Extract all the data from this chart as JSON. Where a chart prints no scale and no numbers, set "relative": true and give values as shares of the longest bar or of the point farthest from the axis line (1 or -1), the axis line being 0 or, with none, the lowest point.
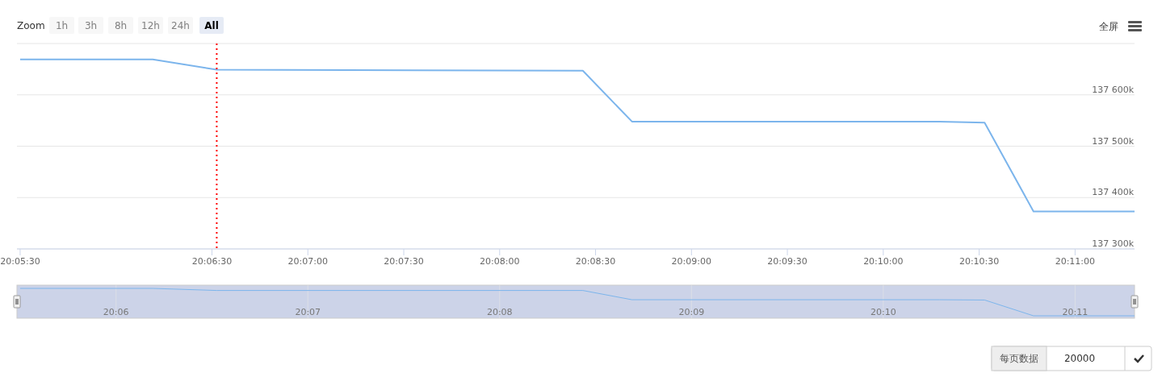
{
  "chart_data": [
    {
      "type": "line",
      "annotations": [
        "Zoom",
        "1h",
        "3h",
        "8h",
        "12h",
        "24h",
        "All",
        "全屏",
        "每页数据",
        "20000"
      ],
      "x": [
        20.091667,
        20.10319,
        20.10875,
        20.14056,
        20.14483,
        20.17156,
        20.17547,
        20.17972,
        20.1885
      ],
      "series": [
        {
          "color": "#7cb5ec",
          "values": [
            137669,
            137669,
            137649,
            137647,
            137548,
            137548,
            137546,
            137373,
            137373
          ]
        }
      ],
      "xlim": [
        20.09139,
        20.1885
      ],
      "ylim": [
        137300,
        137700
      ],
      "xticks": [
        {
          "value": 20.091667,
          "label": "20:05:30"
        },
        {
          "value": 20.108333,
          "label": "20:06:30"
        },
        {
          "value": 20.116667,
          "label": "20:07:00"
        },
        {
          "value": 20.125,
          "label": "20:07:30"
        },
        {
          "value": 20.133333,
          "label": "20:08:00"
        },
        {
          "value": 20.141667,
          "label": "20:08:30"
        },
        {
          "value": 20.15,
          "label": "20:09:00"
        },
        {
          "value": 20.158333,
          "label": "20:09:30"
        },
        {
          "value": 20.166667,
          "label": "20:10:00"
        },
        {
          "value": 20.175,
          "label": "20:10:30"
        },
        {
          "value": 20.183333,
          "label": "20:11:00"
        }
      ],
      "yticks": [
        {
          "value": 137300,
          "label": "137 300k"
        },
        {
          "value": 137400,
          "label": "137 400k"
        },
        {
          "value": 137500,
          "label": "137 500k"
        },
        {
          "value": 137600,
          "label": "137 600k"
        },
        {
          "value": 137700,
          "label": null
        }
      ],
      "ref_lines": [
        {
          "axis": "x",
          "value": 20.10875,
          "color": "#ff0000",
          "line_style": "dotted"
        }
      ],
      "grid": "y",
      "line_style": "solid",
      "marker": "none"
    },
    {
      "type": "line",
      "x": [
        20.091667,
        20.10319,
        20.10875,
        20.14056,
        20.14483,
        20.17156,
        20.17547,
        20.17972,
        20.1885
      ],
      "series": [
        {
          "color": "#7cb5ec",
          "values": [
            1,
            1,
            0.93,
            0.93,
            0.62,
            0.62,
            0.61,
            0.08,
            0.08
          ]
        }
      ],
      "xlim": [
        20.09139,
        20.1885
      ],
      "relative": true,
      "xticks": [
        {
          "value": 20.1,
          "label": "20:06"
        },
        {
          "value": 20.116667,
          "label": "20:07"
        },
        {
          "value": 20.133333,
          "label": "20:08"
        },
        {
          "value": 20.15,
          "label": "20:09"
        },
        {
          "value": 20.166667,
          "label": "20:10"
        },
        {
          "value": 20.183333,
          "label": "20:11"
        }
      ],
      "bands": [
        {
          "axis": "x",
          "from": 20.09139,
          "to": 20.1885,
          "color": "#ccd3e8"
        }
      ],
      "grid": "x",
      "tick_labels": "x",
      "line_style": "solid",
      "marker": "none"
    }
  ]
}
